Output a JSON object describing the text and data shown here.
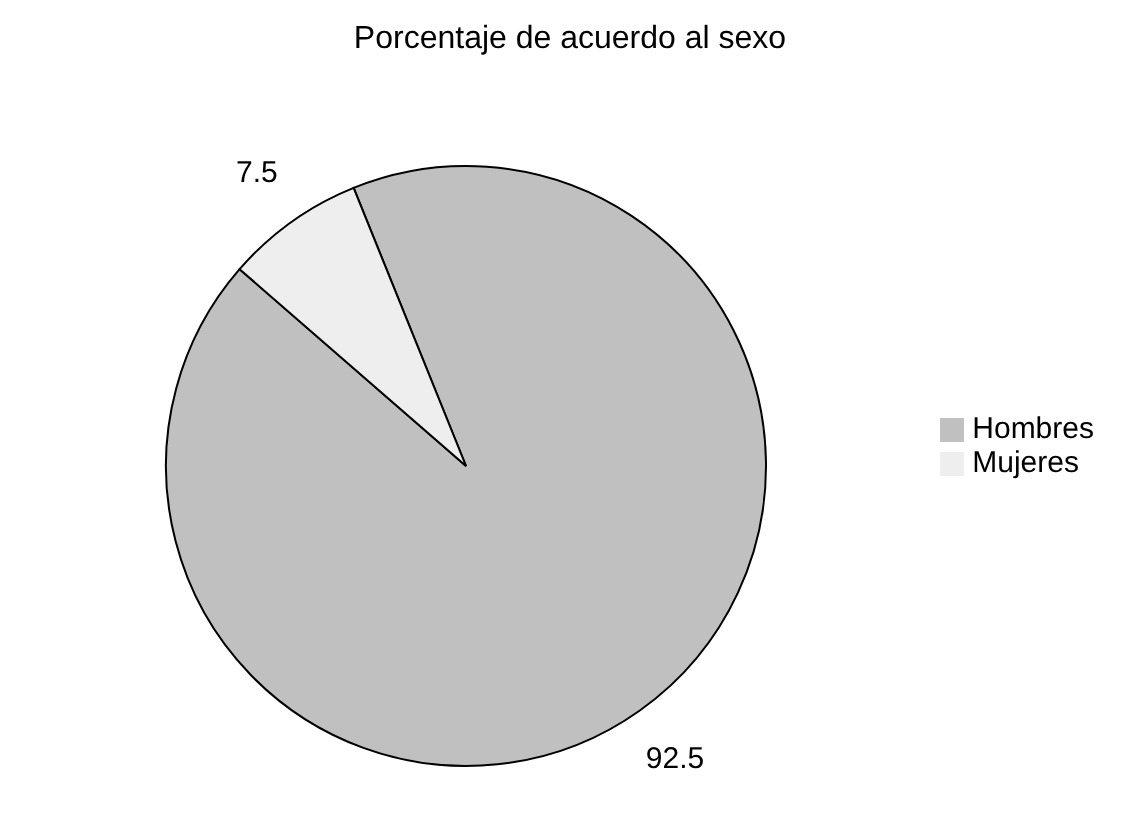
{
  "chart_data": {
    "type": "pie",
    "title": "Porcentaje de acuerdo al sexo",
    "categories": [
      "Hombres",
      "Mujeres"
    ],
    "values": [
      92.5,
      7.5
    ],
    "colors": [
      "#c0c0c0",
      "#eeeeee"
    ],
    "data_labels": true,
    "legend": "right"
  }
}
